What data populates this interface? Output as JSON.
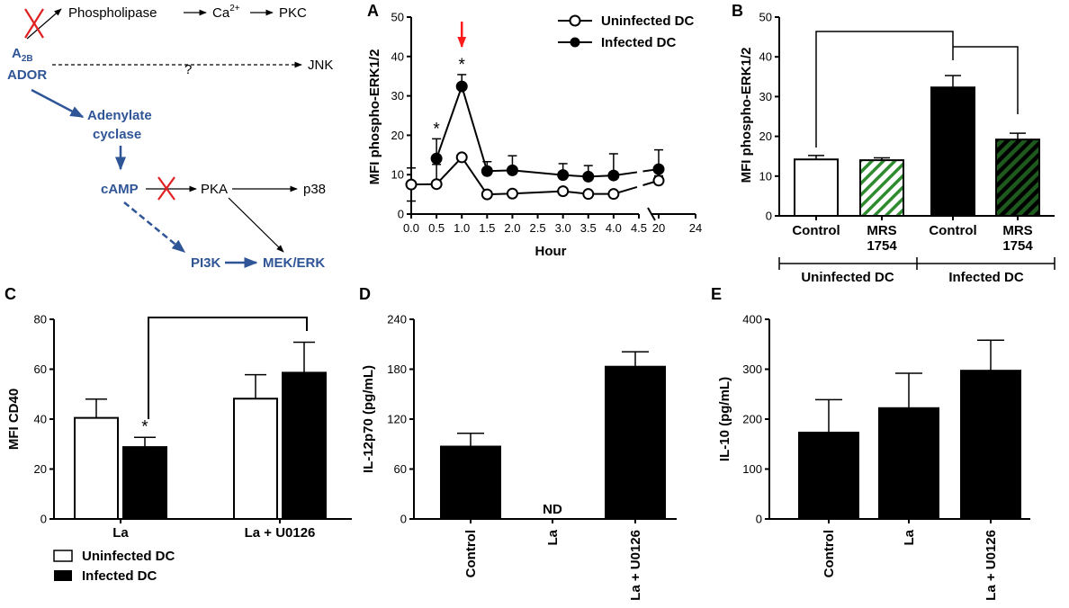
{
  "pathway": {
    "receptor_line1": "A",
    "receptor_sub": "2B",
    "receptor_line2": "ADOR",
    "phospholipase": "Phospholipase",
    "ca": "Ca",
    "ca_sup": "2+",
    "pkc": "PKC",
    "question": "?",
    "jnk": "JNK",
    "adenylate": "Adenylate",
    "cyclase": "cyclase",
    "camp": "cAMP",
    "pka": "PKA",
    "p38": "p38",
    "pi3k": "PI3K",
    "mek_erk": "MEK/ERK"
  },
  "colors": {
    "pathway_blue": "#2f5597",
    "blocked_red": "#e02020",
    "green_hatch": "#2e8b2e",
    "arrow_red": "#ff1a1a"
  },
  "chart_data": [
    {
      "panel": "A",
      "type": "line",
      "xlabel": "Hour",
      "ylabel": "MFI phospho-ERK1/2",
      "ylim": [
        0,
        50
      ],
      "yticks": [
        "0",
        "10",
        "20",
        "30",
        "40",
        "50"
      ],
      "xticks": [
        "0.0",
        "0.5",
        "1.0",
        "1.5",
        "2.0",
        "2.5",
        "3.0",
        "3.5",
        "4.0",
        "4.5",
        "20",
        "24"
      ],
      "axis_break": [
        4.5,
        20
      ],
      "series": [
        {
          "name": "Uninfected DC",
          "marker": "open-circle",
          "x": [
            0,
            0.5,
            1.0,
            1.5,
            2.0,
            3.0,
            3.5,
            4.0,
            20
          ],
          "y": [
            7.5,
            7.6,
            14.4,
            5.0,
            5.2,
            5.8,
            5.1,
            5.1,
            8.5
          ],
          "err": [
            4.2,
            5.0,
            0.5,
            0.3,
            0.5,
            0.4,
            0.4,
            0.4,
            1.2
          ]
        },
        {
          "name": "Infected DC",
          "marker": "filled-circle",
          "x": [
            0.5,
            1.0,
            1.5,
            2.0,
            3.0,
            3.5,
            4.0,
            20
          ],
          "y": [
            14.1,
            32.4,
            10.9,
            11.1,
            9.9,
            9.5,
            9.8,
            11.4
          ],
          "err": [
            5.0,
            3.0,
            2.4,
            3.7,
            2.9,
            2.8,
            5.5,
            4.9
          ]
        }
      ],
      "annotations": [
        "*",
        "*"
      ],
      "stimulus_arrow_at": 1.0
    },
    {
      "panel": "B",
      "type": "bar",
      "ylabel": "MFI phospho-ERK1/2",
      "ylim": [
        0,
        50
      ],
      "yticks": [
        "0",
        "10",
        "20",
        "30",
        "40",
        "50"
      ],
      "categories": [
        "Control",
        "MRS 1754",
        "Control",
        "MRS 1754"
      ],
      "values": [
        14.2,
        14.0,
        32.3,
        19.2
      ],
      "errors": [
        1.0,
        0.6,
        3.0,
        1.6
      ],
      "fills": [
        "white",
        "green-hatch",
        "black",
        "dark-green-hatch"
      ],
      "groups": [
        "Uninfected DC",
        "Infected DC"
      ]
    },
    {
      "panel": "C",
      "type": "bar",
      "ylabel": "MFI CD40",
      "ylim": [
        0,
        80
      ],
      "yticks": [
        "0",
        "20",
        "40",
        "60",
        "80"
      ],
      "categories": [
        "La",
        "La + U0126"
      ],
      "series": [
        {
          "name": "Uninfected DC",
          "values": [
            40.5,
            48.2
          ],
          "errors": [
            7.5,
            9.6
          ]
        },
        {
          "name": "Infected DC",
          "values": [
            28.8,
            58.6
          ],
          "errors": [
            3.9,
            12.2
          ]
        }
      ],
      "annotation": "*"
    },
    {
      "panel": "D",
      "type": "bar",
      "ylabel": "IL-12p70 (pg/mL)",
      "ylim": [
        0,
        240
      ],
      "yticks": [
        "0",
        "60",
        "120",
        "180",
        "240"
      ],
      "categories": [
        "Control",
        "La",
        "La + U0126"
      ],
      "values": [
        87,
        0,
        183
      ],
      "errors": [
        16,
        0,
        18
      ],
      "nd_label": "ND"
    },
    {
      "panel": "E",
      "type": "bar",
      "ylabel": "IL-10 (pg/mL)",
      "ylim": [
        0,
        400
      ],
      "yticks": [
        "0",
        "100",
        "200",
        "300",
        "400"
      ],
      "categories": [
        "Control",
        "La",
        "La + U0126"
      ],
      "values": [
        173,
        222,
        297
      ],
      "errors": [
        66,
        70,
        61
      ]
    }
  ]
}
